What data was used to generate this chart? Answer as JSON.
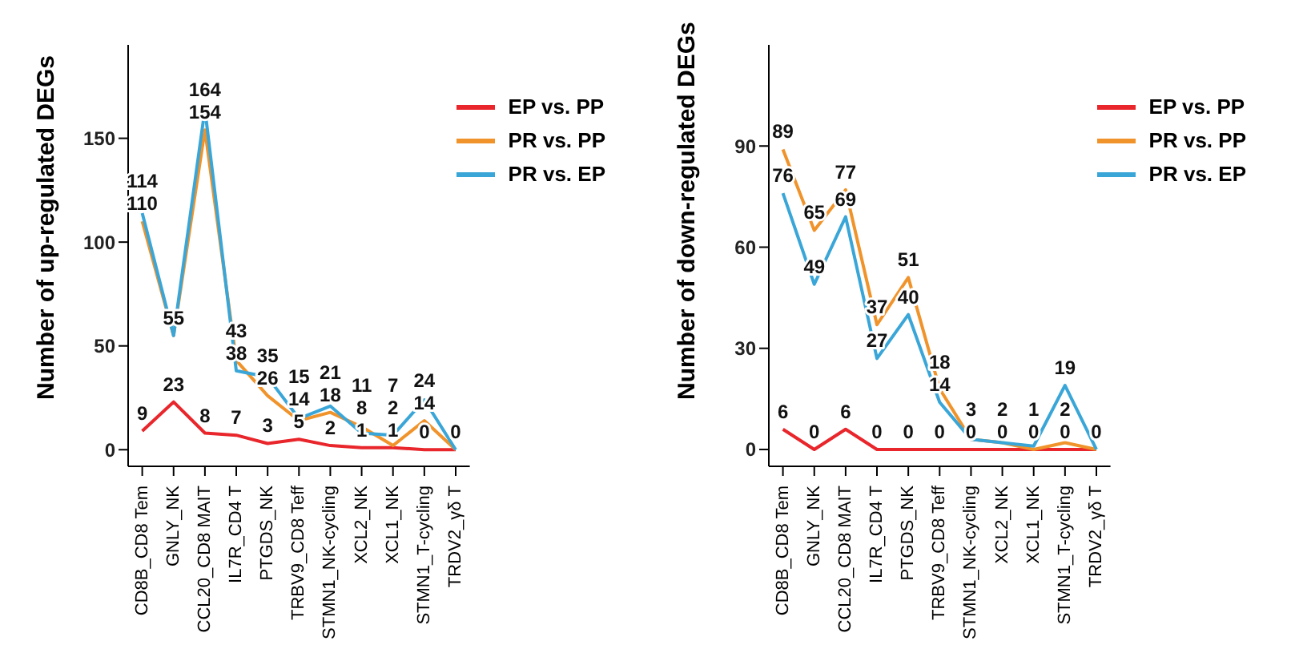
{
  "chart_data": [
    {
      "type": "line",
      "ylabel": "Number of up-regulated DEGs",
      "categories": [
        "CD8B_CD8 Tem",
        "GNLY_NK",
        "CCL20_CD8 MAIT",
        "IL7R_CD4 T",
        "PTGDS_NK",
        "TRBV9_CD8 Teff",
        "STMN1_NK-cycling",
        "XCL2_NK",
        "XCL1_NK",
        "STMN1_T-cycling",
        "TRDV2_γδ T"
      ],
      "ylim": [
        -8,
        195
      ],
      "yticks": [
        0,
        50,
        100,
        150
      ],
      "grid": false,
      "legend": "top right",
      "marker": "none",
      "line_style": "solid",
      "series": [
        {
          "name": "EP vs. PP",
          "color": "#e8262b",
          "values": [
            9,
            23,
            8,
            7,
            3,
            5,
            2,
            1,
            1,
            0,
            0
          ],
          "value_labels": [
            "9",
            "23",
            "8",
            "7",
            "3",
            "5",
            "2",
            "1",
            "1",
            "0",
            "0"
          ]
        },
        {
          "name": "PR vs. PP",
          "color": "#f0932b",
          "values": [
            110,
            55,
            154,
            43,
            26,
            14,
            18,
            11,
            2,
            14,
            0
          ],
          "value_labels": [
            "110",
            "55",
            "154",
            "43",
            "26",
            "14",
            "18",
            "11",
            "2",
            "14",
            null
          ]
        },
        {
          "name": "PR vs. EP",
          "color": "#3aa6d8",
          "values": [
            114,
            55,
            164,
            38,
            35,
            15,
            21,
            8,
            7,
            24,
            0
          ],
          "value_labels": [
            "114",
            null,
            "164",
            "38",
            "35",
            "15",
            "21",
            "8",
            "7",
            "24",
            null
          ]
        }
      ]
    },
    {
      "type": "line",
      "ylabel": "Number of down-regulated DEGs",
      "categories": [
        "CD8B_CD8 Tem",
        "GNLY_NK",
        "CCL20_CD8 MAIT",
        "IL7R_CD4 T",
        "PTGDS_NK",
        "TRBV9_CD8 Teff",
        "STMN1_NK-cycling",
        "XCL2_NK",
        "XCL1_NK",
        "STMN1_T-cycling",
        "TRDV2_γδ T"
      ],
      "ylim": [
        -5,
        120
      ],
      "yticks": [
        0,
        30,
        60,
        90
      ],
      "grid": false,
      "legend": "top right",
      "marker": "none",
      "line_style": "solid",
      "series": [
        {
          "name": "EP vs. PP",
          "color": "#e8262b",
          "values": [
            6,
            0,
            6,
            0,
            0,
            0,
            0,
            0,
            0,
            0,
            0
          ],
          "value_labels": [
            "6",
            "0",
            "6",
            "0",
            "0",
            "0",
            "0",
            "0",
            "0",
            "0",
            "0"
          ]
        },
        {
          "name": "PR vs. PP",
          "color": "#f0932b",
          "values": [
            89,
            65,
            77,
            37,
            51,
            18,
            3,
            2,
            0,
            2,
            0
          ],
          "value_labels": [
            "89",
            "65",
            "77",
            "37",
            "51",
            "18",
            "3",
            "2",
            null,
            "2",
            null
          ]
        },
        {
          "name": "PR vs. EP",
          "color": "#3aa6d8",
          "values": [
            76,
            49,
            69,
            27,
            40,
            14,
            3,
            2,
            1,
            19,
            0
          ],
          "value_labels": [
            "76",
            "49",
            "69",
            "27",
            "40",
            "14",
            null,
            null,
            "1",
            "19",
            null
          ]
        }
      ]
    }
  ]
}
